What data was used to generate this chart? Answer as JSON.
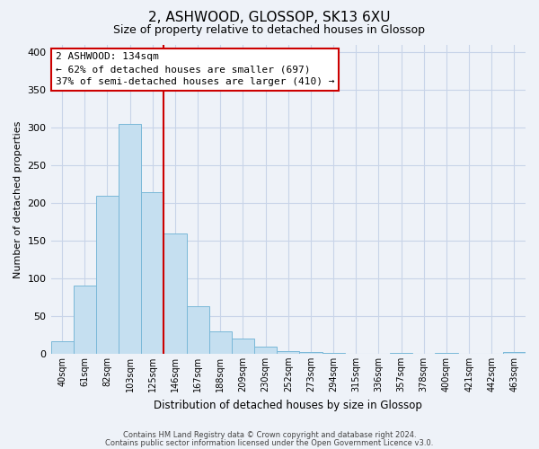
{
  "title": "2, ASHWOOD, GLOSSOP, SK13 6XU",
  "subtitle": "Size of property relative to detached houses in Glossop",
  "xlabel": "Distribution of detached houses by size in Glossop",
  "ylabel": "Number of detached properties",
  "bin_labels": [
    "40sqm",
    "61sqm",
    "82sqm",
    "103sqm",
    "125sqm",
    "146sqm",
    "167sqm",
    "188sqm",
    "209sqm",
    "230sqm",
    "252sqm",
    "273sqm",
    "294sqm",
    "315sqm",
    "336sqm",
    "357sqm",
    "378sqm",
    "400sqm",
    "421sqm",
    "442sqm",
    "463sqm"
  ],
  "bar_heights": [
    17,
    90,
    210,
    305,
    215,
    160,
    63,
    30,
    20,
    10,
    4,
    2,
    1,
    0,
    0,
    1,
    0,
    1,
    0,
    0,
    2
  ],
  "bar_color": "#c5dff0",
  "bar_edge_color": "#7ab8d8",
  "vline_color": "#cc0000",
  "annotation_title": "2 ASHWOOD: 134sqm",
  "annotation_line1": "← 62% of detached houses are smaller (697)",
  "annotation_line2": "37% of semi-detached houses are larger (410) →",
  "annotation_box_color": "#ffffff",
  "annotation_box_edge": "#cc0000",
  "ylim": [
    0,
    410
  ],
  "yticks": [
    0,
    50,
    100,
    150,
    200,
    250,
    300,
    350,
    400
  ],
  "footer1": "Contains HM Land Registry data © Crown copyright and database right 2024.",
  "footer2": "Contains public sector information licensed under the Open Government Licence v3.0.",
  "bg_color": "#eef2f8"
}
